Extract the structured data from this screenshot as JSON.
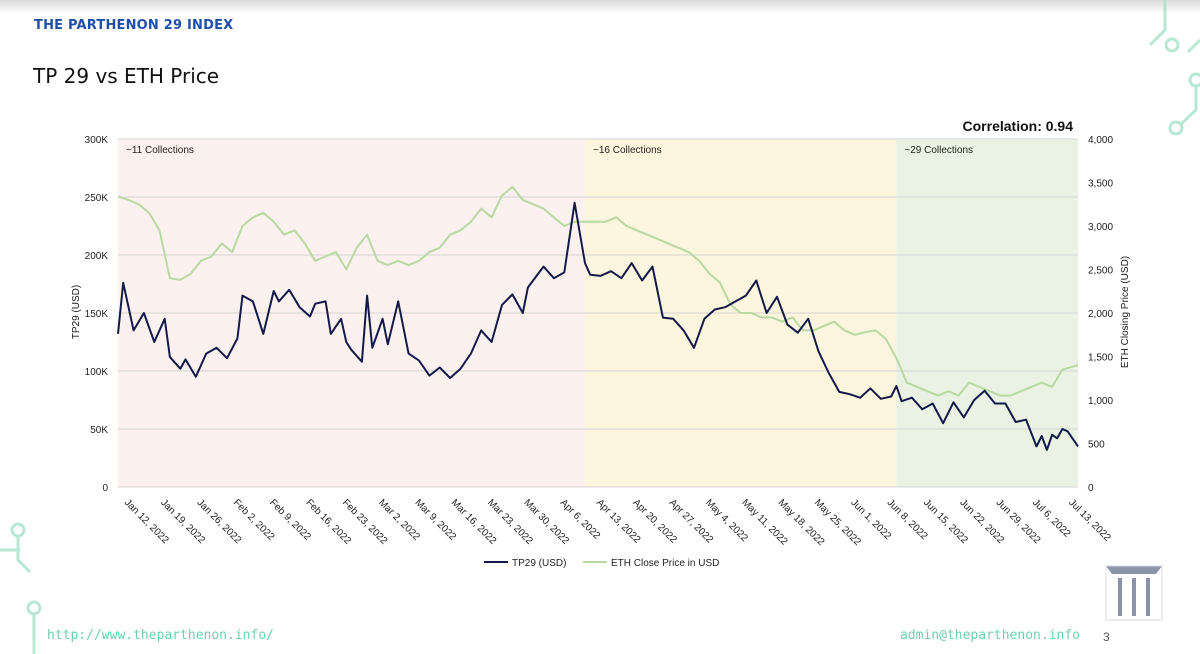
{
  "header": {
    "brand": "THE PARTHENON 29 INDEX",
    "title": "TP 29 vs ETH Price"
  },
  "footer": {
    "url": "http://www.theparthenon.info/",
    "email": "admin@theparthenon.info",
    "page": "3"
  },
  "colors": {
    "tp29": "#121a4a",
    "eth": "#b7d9a3",
    "zone1": "#fcf1ee",
    "zone2": "#fdf5dd",
    "zone3": "#eaf3e3",
    "brand": "#1f4fa8",
    "accent": "#6fd0b0"
  },
  "chart_data": {
    "type": "line",
    "correlation": "Correlation: 0.94",
    "ylabel": "TP29 (USD)",
    "y2label": "ETH Closing Price (USD)",
    "ylim": [
      0,
      300000
    ],
    "y2lim": [
      0,
      4000
    ],
    "yticks": [
      "0",
      "50K",
      "100K",
      "150K",
      "200K",
      "250K",
      "300K"
    ],
    "y2ticks": [
      "0",
      "500",
      "1,000",
      "1,500",
      "2,000",
      "2,500",
      "3,000",
      "3,500",
      "4,000"
    ],
    "date_range": [
      "2022-01-12",
      "2022-07-16"
    ],
    "xtick_labels": [
      "Jan 12, 2022",
      "Jan 19, 2022",
      "Jan 26, 2022",
      "Feb 2, 2022",
      "Feb 9, 2022",
      "Feb 16, 2022",
      "Feb 23, 2022",
      "Mar 2, 2022",
      "Mar 9, 2022",
      "Mar 16, 2022",
      "Mar 23, 2022",
      "Mar 30, 2022",
      "Apr 6, 2022",
      "Apr 13, 2022",
      "Apr 20, 2022",
      "Apr 27, 2022",
      "May 4, 2022",
      "May 11, 2022",
      "May 18, 2022",
      "May 25, 2022",
      "Jun 1, 2022",
      "Jun 8, 2022",
      "Jun 15, 2022",
      "Jun 22, 2022",
      "Jun 29, 2022",
      "Jul 6, 2022",
      "Jul 13, 2022"
    ],
    "zones": [
      {
        "label": "~11 Collections",
        "from": "2022-01-12",
        "to": "2022-04-12"
      },
      {
        "label": "~16 Collections",
        "from": "2022-04-12",
        "to": "2022-06-11"
      },
      {
        "label": "~29 Collections",
        "from": "2022-06-11",
        "to": "2022-07-16"
      }
    ],
    "legend": "bottom",
    "series": [
      {
        "name": "TP29 (USD)",
        "axis": "left",
        "x": [
          "2022-01-12",
          "2022-01-13",
          "2022-01-15",
          "2022-01-17",
          "2022-01-19",
          "2022-01-21",
          "2022-01-22",
          "2022-01-24",
          "2022-01-25",
          "2022-01-27",
          "2022-01-29",
          "2022-01-31",
          "2022-02-02",
          "2022-02-04",
          "2022-02-05",
          "2022-02-07",
          "2022-02-09",
          "2022-02-11",
          "2022-02-12",
          "2022-02-14",
          "2022-02-16",
          "2022-02-18",
          "2022-02-19",
          "2022-02-21",
          "2022-02-22",
          "2022-02-24",
          "2022-02-25",
          "2022-02-26",
          "2022-02-28",
          "2022-03-01",
          "2022-03-02",
          "2022-03-04",
          "2022-03-05",
          "2022-03-07",
          "2022-03-09",
          "2022-03-11",
          "2022-03-13",
          "2022-03-15",
          "2022-03-17",
          "2022-03-19",
          "2022-03-21",
          "2022-03-23",
          "2022-03-25",
          "2022-03-27",
          "2022-03-29",
          "2022-03-31",
          "2022-04-01",
          "2022-04-02",
          "2022-04-04",
          "2022-04-06",
          "2022-04-08",
          "2022-04-10",
          "2022-04-12",
          "2022-04-13",
          "2022-04-15",
          "2022-04-17",
          "2022-04-19",
          "2022-04-21",
          "2022-04-23",
          "2022-04-25",
          "2022-04-27",
          "2022-04-29",
          "2022-05-01",
          "2022-05-03",
          "2022-05-05",
          "2022-05-07",
          "2022-05-09",
          "2022-05-11",
          "2022-05-13",
          "2022-05-15",
          "2022-05-17",
          "2022-05-19",
          "2022-05-21",
          "2022-05-23",
          "2022-05-25",
          "2022-05-27",
          "2022-05-29",
          "2022-05-31",
          "2022-06-02",
          "2022-06-04",
          "2022-06-06",
          "2022-06-08",
          "2022-06-10",
          "2022-06-11",
          "2022-06-12",
          "2022-06-14",
          "2022-06-16",
          "2022-06-18",
          "2022-06-20",
          "2022-06-22",
          "2022-06-24",
          "2022-06-26",
          "2022-06-28",
          "2022-06-30",
          "2022-07-02",
          "2022-07-04",
          "2022-07-06",
          "2022-07-08",
          "2022-07-09",
          "2022-07-10",
          "2022-07-11",
          "2022-07-12",
          "2022-07-13",
          "2022-07-14",
          "2022-07-16"
        ],
        "values": [
          132000,
          176000,
          135000,
          150000,
          125000,
          145000,
          112000,
          102000,
          110000,
          95000,
          115000,
          120000,
          111000,
          128000,
          165000,
          160000,
          132000,
          169000,
          160000,
          170000,
          155000,
          147000,
          158000,
          160000,
          132000,
          145000,
          125000,
          118000,
          108000,
          165000,
          120000,
          145000,
          123000,
          160000,
          115000,
          109000,
          96000,
          103000,
          94000,
          102000,
          115000,
          135000,
          125000,
          157000,
          166000,
          150000,
          172000,
          178000,
          190000,
          180000,
          185000,
          245000,
          193000,
          183000,
          182000,
          186000,
          180000,
          193000,
          178000,
          190000,
          146000,
          145000,
          135000,
          120000,
          145000,
          153000,
          155000,
          160000,
          165000,
          178000,
          150000,
          164000,
          140000,
          133000,
          145000,
          117000,
          98000,
          82000,
          80000,
          77000,
          85000,
          76000,
          78000,
          87000,
          74000,
          77000,
          67000,
          72000,
          55000,
          73000,
          60000,
          75000,
          83000,
          72000,
          72000,
          56000,
          58000,
          35000,
          44000,
          32000,
          45000,
          42000,
          50000,
          48000,
          35000
        ],
        "note": ""
      },
      {
        "name": "ETH Close Price in USD",
        "axis": "right",
        "x": [
          "2022-01-12",
          "2022-01-14",
          "2022-01-16",
          "2022-01-18",
          "2022-01-20",
          "2022-01-22",
          "2022-01-24",
          "2022-01-26",
          "2022-01-28",
          "2022-01-30",
          "2022-02-01",
          "2022-02-03",
          "2022-02-05",
          "2022-02-07",
          "2022-02-09",
          "2022-02-11",
          "2022-02-13",
          "2022-02-15",
          "2022-02-17",
          "2022-02-19",
          "2022-02-21",
          "2022-02-23",
          "2022-02-25",
          "2022-02-27",
          "2022-03-01",
          "2022-03-03",
          "2022-03-05",
          "2022-03-07",
          "2022-03-09",
          "2022-03-11",
          "2022-03-13",
          "2022-03-15",
          "2022-03-17",
          "2022-03-19",
          "2022-03-21",
          "2022-03-23",
          "2022-03-25",
          "2022-03-27",
          "2022-03-29",
          "2022-03-31",
          "2022-04-02",
          "2022-04-04",
          "2022-04-06",
          "2022-04-08",
          "2022-04-10",
          "2022-04-12",
          "2022-04-14",
          "2022-04-16",
          "2022-04-18",
          "2022-04-20",
          "2022-04-22",
          "2022-04-24",
          "2022-04-26",
          "2022-04-28",
          "2022-04-30",
          "2022-05-02",
          "2022-05-04",
          "2022-05-06",
          "2022-05-08",
          "2022-05-10",
          "2022-05-12",
          "2022-05-14",
          "2022-05-16",
          "2022-05-18",
          "2022-05-20",
          "2022-05-22",
          "2022-05-24",
          "2022-05-26",
          "2022-05-28",
          "2022-05-30",
          "2022-06-01",
          "2022-06-03",
          "2022-06-05",
          "2022-06-07",
          "2022-06-09",
          "2022-06-11",
          "2022-06-13",
          "2022-06-15",
          "2022-06-17",
          "2022-06-19",
          "2022-06-21",
          "2022-06-23",
          "2022-06-25",
          "2022-06-27",
          "2022-06-29",
          "2022-07-01",
          "2022-07-03",
          "2022-07-05",
          "2022-07-07",
          "2022-07-09",
          "2022-07-11",
          "2022-07-13",
          "2022-07-16"
        ],
        "values": [
          3340,
          3300,
          3250,
          3150,
          2950,
          2400,
          2380,
          2450,
          2600,
          2650,
          2800,
          2700,
          3000,
          3100,
          3150,
          3050,
          2900,
          2950,
          2800,
          2600,
          2650,
          2700,
          2500,
          2750,
          2900,
          2600,
          2550,
          2600,
          2550,
          2600,
          2700,
          2750,
          2900,
          2950,
          3050,
          3200,
          3100,
          3350,
          3450,
          3300,
          3250,
          3200,
          3100,
          3000,
          3050,
          3050,
          3050,
          3050,
          3100,
          3000,
          2950,
          2900,
          2850,
          2800,
          2750,
          2700,
          2600,
          2450,
          2350,
          2100,
          2000,
          2000,
          1950,
          1950,
          1900,
          1950,
          1800,
          1800,
          1850,
          1900,
          1800,
          1750,
          1780,
          1800,
          1700,
          1480,
          1200,
          1150,
          1100,
          1050,
          1100,
          1050,
          1200,
          1150,
          1100,
          1050,
          1050,
          1100,
          1150,
          1200,
          1150,
          1350,
          1400
        ],
        "note": ""
      }
    ]
  }
}
